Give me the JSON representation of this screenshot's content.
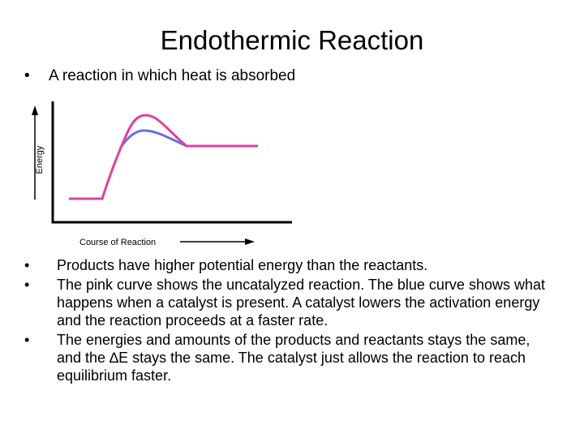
{
  "slide": {
    "title": "Endothermic Reaction",
    "intro_bullet": "A reaction in which heat is absorbed",
    "bullet_symbol": "•",
    "bullets": [
      "Products have higher potential energy than the reactants.",
      "The pink curve shows the uncatalyzed reaction. The blue curve shows what happens when a catalyst is present. A catalyst lowers the activation energy and the reaction proceeds at a faster rate.",
      "The energies and amounts of the products and reactants stays the same, and the ∆E stays the same. The catalyst just allows the reaction to reach equilibrium faster."
    ]
  },
  "diagram": {
    "y_axis_label": "Energy",
    "x_axis_label": "Course of Reaction",
    "colors": {
      "uncatalyzed_curve": "#e040a0",
      "catalyzed_curve": "#6b6fe0",
      "axes": "#000000"
    }
  }
}
